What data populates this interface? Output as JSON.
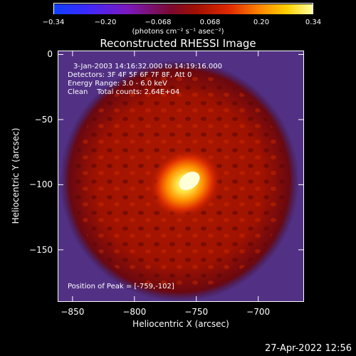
{
  "colorbar": {
    "ticks": [
      "−0.34",
      "−0.20",
      "−0.068",
      "0.068",
      "0.20",
      "0.34"
    ],
    "units": "(photons cm⁻² s⁻¹ asec⁻²)"
  },
  "title": "Reconstructed RHESSI Image",
  "info": {
    "line1": "3-Jan-2003 14:16:32.000 to 14:19:16.000",
    "line2": "Detectors: 3F 4F 5F 6F 7F 8F, Att 0",
    "line3": "Energy Range: 3.0 - 6.0 keV",
    "line4": "Clean    Total counts: 2.64E+04",
    "peak": "Position of Peak = [-759,-102]"
  },
  "chart_data": {
    "type": "heatmap",
    "title": "Reconstructed RHESSI Image",
    "xlabel": "Heliocentric X (arcsec)",
    "ylabel": "Heliocentric Y (arcsec)",
    "xlim": [
      -862,
      -663
    ],
    "ylim": [
      -190,
      3
    ],
    "clim": [
      -0.34,
      0.34
    ],
    "x_ticks": [
      {
        "value": -850,
        "label": "−850"
      },
      {
        "value": -800,
        "label": "−800"
      },
      {
        "value": -750,
        "label": "−750"
      },
      {
        "value": -700,
        "label": "−700"
      }
    ],
    "y_ticks": [
      {
        "value": 0,
        "label": "0"
      },
      {
        "value": -50,
        "label": "−50"
      },
      {
        "value": -100,
        "label": "−100"
      },
      {
        "value": -150,
        "label": "−150"
      }
    ],
    "peak_position": [
      -759,
      -102
    ]
  },
  "timestamp": "27-Apr-2022 12:56"
}
